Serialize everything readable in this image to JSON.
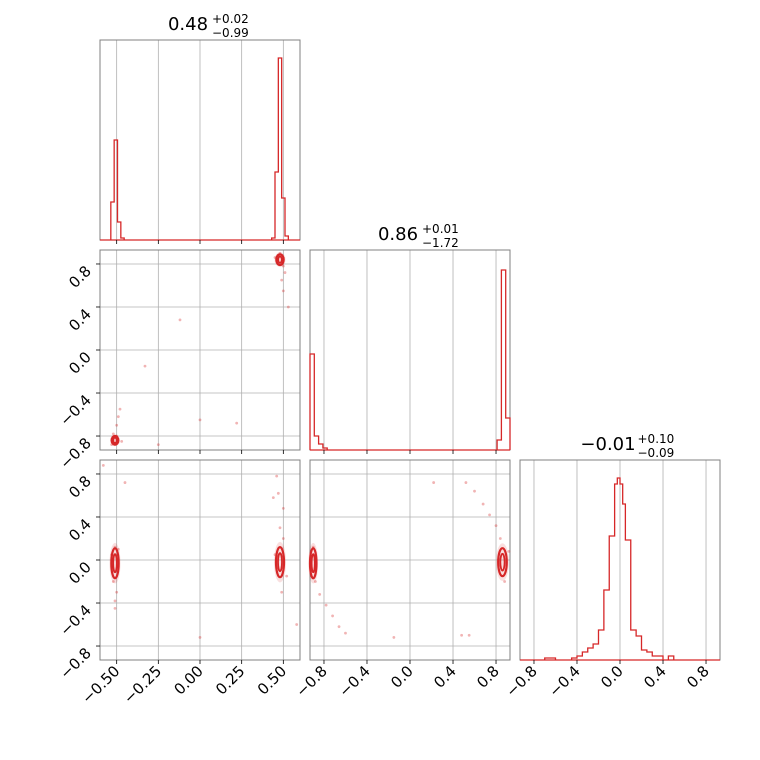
{
  "chart_data": [
    {
      "panel": "marginal-1",
      "type": "histogram",
      "title": {
        "value": "0.48",
        "plus": "+0.02",
        "minus": "−0.99"
      },
      "xlim": [
        -0.6,
        0.6
      ],
      "grid": true,
      "bars": [
        {
          "x0": -0.535,
          "x1": -0.515,
          "h": 0.19
        },
        {
          "x0": -0.515,
          "x1": -0.495,
          "h": 0.5
        },
        {
          "x0": -0.495,
          "x1": -0.475,
          "h": 0.09
        },
        {
          "x0": -0.475,
          "x1": -0.455,
          "h": 0.01
        },
        {
          "x0": 0.43,
          "x1": 0.45,
          "h": 0.01
        },
        {
          "x0": 0.45,
          "x1": 0.47,
          "h": 0.34
        },
        {
          "x0": 0.47,
          "x1": 0.49,
          "h": 0.91
        },
        {
          "x0": 0.49,
          "x1": 0.51,
          "h": 0.21
        },
        {
          "x0": 0.51,
          "x1": 0.53,
          "h": 0.02
        }
      ]
    },
    {
      "panel": "marginal-2",
      "type": "histogram",
      "title": {
        "value": "0.86",
        "plus": "+0.01",
        "minus": "−1.72"
      },
      "xlim": [
        -0.93,
        0.93
      ],
      "grid": true,
      "bars": [
        {
          "x0": -0.93,
          "x1": -0.89,
          "h": 0.48
        },
        {
          "x0": -0.89,
          "x1": -0.85,
          "h": 0.07
        },
        {
          "x0": -0.85,
          "x1": -0.81,
          "h": 0.03
        },
        {
          "x0": -0.81,
          "x1": -0.77,
          "h": 0.01
        },
        {
          "x0": 0.81,
          "x1": 0.85,
          "h": 0.05
        },
        {
          "x0": 0.85,
          "x1": 0.89,
          "h": 0.9
        },
        {
          "x0": 0.89,
          "x1": 0.93,
          "h": 0.16
        }
      ]
    },
    {
      "panel": "marginal-3",
      "type": "histogram",
      "title": {
        "value": "−0.01",
        "plus": "+0.10",
        "minus": "−0.09"
      },
      "xlim": [
        -0.93,
        0.93
      ],
      "grid": true,
      "bars": [
        {
          "x0": -0.7,
          "x1": -0.6,
          "h": 0.01
        },
        {
          "x0": -0.45,
          "x1": -0.4,
          "h": 0.01
        },
        {
          "x0": -0.4,
          "x1": -0.35,
          "h": 0.02
        },
        {
          "x0": -0.35,
          "x1": -0.3,
          "h": 0.04
        },
        {
          "x0": -0.3,
          "x1": -0.25,
          "h": 0.06
        },
        {
          "x0": -0.25,
          "x1": -0.2,
          "h": 0.08
        },
        {
          "x0": -0.2,
          "x1": -0.15,
          "h": 0.15
        },
        {
          "x0": -0.15,
          "x1": -0.1,
          "h": 0.35
        },
        {
          "x0": -0.1,
          "x1": -0.05,
          "h": 0.62
        },
        {
          "x0": -0.05,
          "x1": -0.025,
          "h": 0.88
        },
        {
          "x0": -0.025,
          "x1": 0.0,
          "h": 0.91
        },
        {
          "x0": 0.0,
          "x1": 0.025,
          "h": 0.88
        },
        {
          "x0": 0.025,
          "x1": 0.05,
          "h": 0.78
        },
        {
          "x0": 0.05,
          "x1": 0.1,
          "h": 0.6
        },
        {
          "x0": 0.1,
          "x1": 0.15,
          "h": 0.15
        },
        {
          "x0": 0.15,
          "x1": 0.2,
          "h": 0.12
        },
        {
          "x0": 0.2,
          "x1": 0.25,
          "h": 0.05
        },
        {
          "x0": 0.25,
          "x1": 0.3,
          "h": 0.04
        },
        {
          "x0": 0.3,
          "x1": 0.35,
          "h": 0.02
        },
        {
          "x0": 0.35,
          "x1": 0.4,
          "h": 0.02
        },
        {
          "x0": 0.45,
          "x1": 0.5,
          "h": 0.02
        }
      ]
    },
    {
      "panel": "joint-2-1",
      "type": "scatter",
      "xlim": [
        -0.6,
        0.6
      ],
      "ylim": [
        -0.93,
        0.93
      ],
      "grid": true,
      "contours": [
        {
          "cx": 0.48,
          "cy": 0.84,
          "rx": 0.022,
          "ry": 0.05
        },
        {
          "cx": -0.51,
          "cy": -0.84,
          "rx": 0.02,
          "ry": 0.04
        }
      ],
      "points": [
        [
          0.47,
          0.88
        ],
        [
          0.49,
          0.82
        ],
        [
          0.5,
          0.78
        ],
        [
          0.46,
          0.83
        ],
        [
          0.51,
          0.72
        ],
        [
          0.49,
          0.65
        ],
        [
          0.5,
          0.55
        ],
        [
          0.53,
          0.4
        ],
        [
          0.48,
          0.9
        ],
        [
          0.45,
          0.86
        ],
        [
          -0.12,
          0.28
        ],
        [
          -0.33,
          -0.15
        ],
        [
          -0.5,
          -0.8
        ],
        [
          -0.52,
          -0.78
        ],
        [
          -0.5,
          -0.7
        ],
        [
          -0.49,
          -0.62
        ],
        [
          -0.48,
          -0.55
        ],
        [
          -0.53,
          -0.88
        ],
        [
          -0.47,
          -0.85
        ],
        [
          0.0,
          -0.65
        ],
        [
          0.22,
          -0.68
        ],
        [
          -0.25,
          -0.88
        ]
      ]
    },
    {
      "panel": "joint-3-1",
      "type": "scatter",
      "xlim": [
        -0.6,
        0.6
      ],
      "ylim": [
        -0.93,
        0.93
      ],
      "grid": true,
      "contours": [
        {
          "cx": -0.51,
          "cy": -0.03,
          "rx": 0.022,
          "ry": 0.14
        },
        {
          "cx": 0.48,
          "cy": -0.02,
          "rx": 0.024,
          "ry": 0.14
        }
      ],
      "points": [
        [
          -0.51,
          0.12
        ],
        [
          -0.52,
          -0.2
        ],
        [
          -0.5,
          -0.3
        ],
        [
          -0.51,
          -0.38
        ],
        [
          -0.53,
          0.05
        ],
        [
          -0.49,
          0.1
        ],
        [
          -0.51,
          -0.45
        ],
        [
          -0.45,
          0.72
        ],
        [
          -0.58,
          0.88
        ],
        [
          0.48,
          0.3
        ],
        [
          0.5,
          0.48
        ],
        [
          0.47,
          0.62
        ],
        [
          0.46,
          0.78
        ],
        [
          0.49,
          -0.3
        ],
        [
          0.5,
          0.2
        ],
        [
          0.52,
          -0.15
        ],
        [
          0.45,
          0.05
        ],
        [
          0.58,
          -0.6
        ],
        [
          0.0,
          -0.72
        ],
        [
          0.44,
          0.58
        ]
      ]
    },
    {
      "panel": "joint-3-2",
      "type": "scatter",
      "xlim": [
        -0.93,
        0.93
      ],
      "ylim": [
        -0.93,
        0.93
      ],
      "grid": true,
      "contours": [
        {
          "cx": -0.9,
          "cy": -0.03,
          "rx": 0.03,
          "ry": 0.14
        },
        {
          "cx": 0.86,
          "cy": -0.02,
          "rx": 0.04,
          "ry": 0.13
        }
      ],
      "points": [
        [
          -0.88,
          -0.2
        ],
        [
          -0.84,
          -0.32
        ],
        [
          -0.78,
          -0.42
        ],
        [
          -0.72,
          -0.52
        ],
        [
          -0.66,
          -0.62
        ],
        [
          -0.6,
          -0.68
        ],
        [
          -0.9,
          0.12
        ],
        [
          0.84,
          0.2
        ],
        [
          0.8,
          0.32
        ],
        [
          0.74,
          0.42
        ],
        [
          0.68,
          0.52
        ],
        [
          0.6,
          0.64
        ],
        [
          0.52,
          0.72
        ],
        [
          0.88,
          -0.2
        ],
        [
          0.92,
          0.08
        ],
        [
          0.55,
          -0.7
        ],
        [
          0.48,
          -0.7
        ],
        [
          -0.15,
          -0.72
        ],
        [
          0.22,
          0.72
        ]
      ]
    }
  ],
  "ticks": {
    "param1": [
      "−0.50",
      "−0.25",
      "0.00",
      "0.25",
      "0.50"
    ],
    "param2": [
      "−0.8",
      "−0.4",
      "0.0",
      "0.4",
      "0.8"
    ],
    "param3": [
      "−0.8",
      "−0.4",
      "0.0",
      "0.4",
      "0.8"
    ]
  },
  "colors": {
    "series": "#d62728",
    "grid": "#b0b0b0",
    "frame": "#808080"
  }
}
